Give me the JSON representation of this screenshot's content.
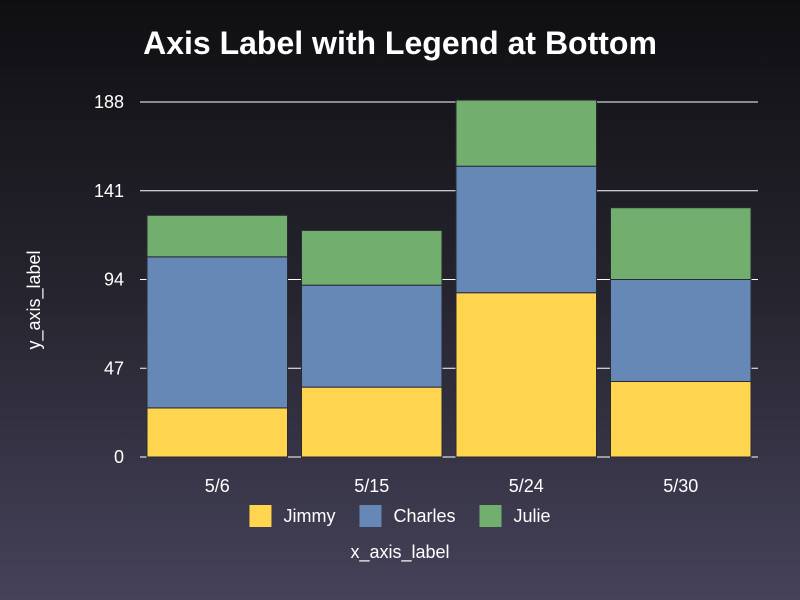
{
  "chart_data": {
    "type": "bar",
    "stacked": true,
    "title": "Axis Label with Legend at Bottom",
    "xlabel": "x_axis_label",
    "ylabel": "y_axis_label",
    "categories": [
      "5/6",
      "5/15",
      "5/24",
      "5/30"
    ],
    "series": [
      {
        "name": "Jimmy",
        "values": [
          26,
          37,
          87,
          40
        ],
        "color": "#ffd54f"
      },
      {
        "name": "Charles",
        "values": [
          80,
          54,
          67,
          54
        ],
        "color": "#6688b7"
      },
      {
        "name": "Julie",
        "values": [
          22,
          29,
          35,
          38
        ],
        "color": "#72ae6e"
      }
    ],
    "yticks": [
      "0",
      "47",
      "94",
      "141",
      "188"
    ],
    "ylim": [
      0,
      188
    ],
    "grid": true,
    "legend_position": "bottom"
  }
}
